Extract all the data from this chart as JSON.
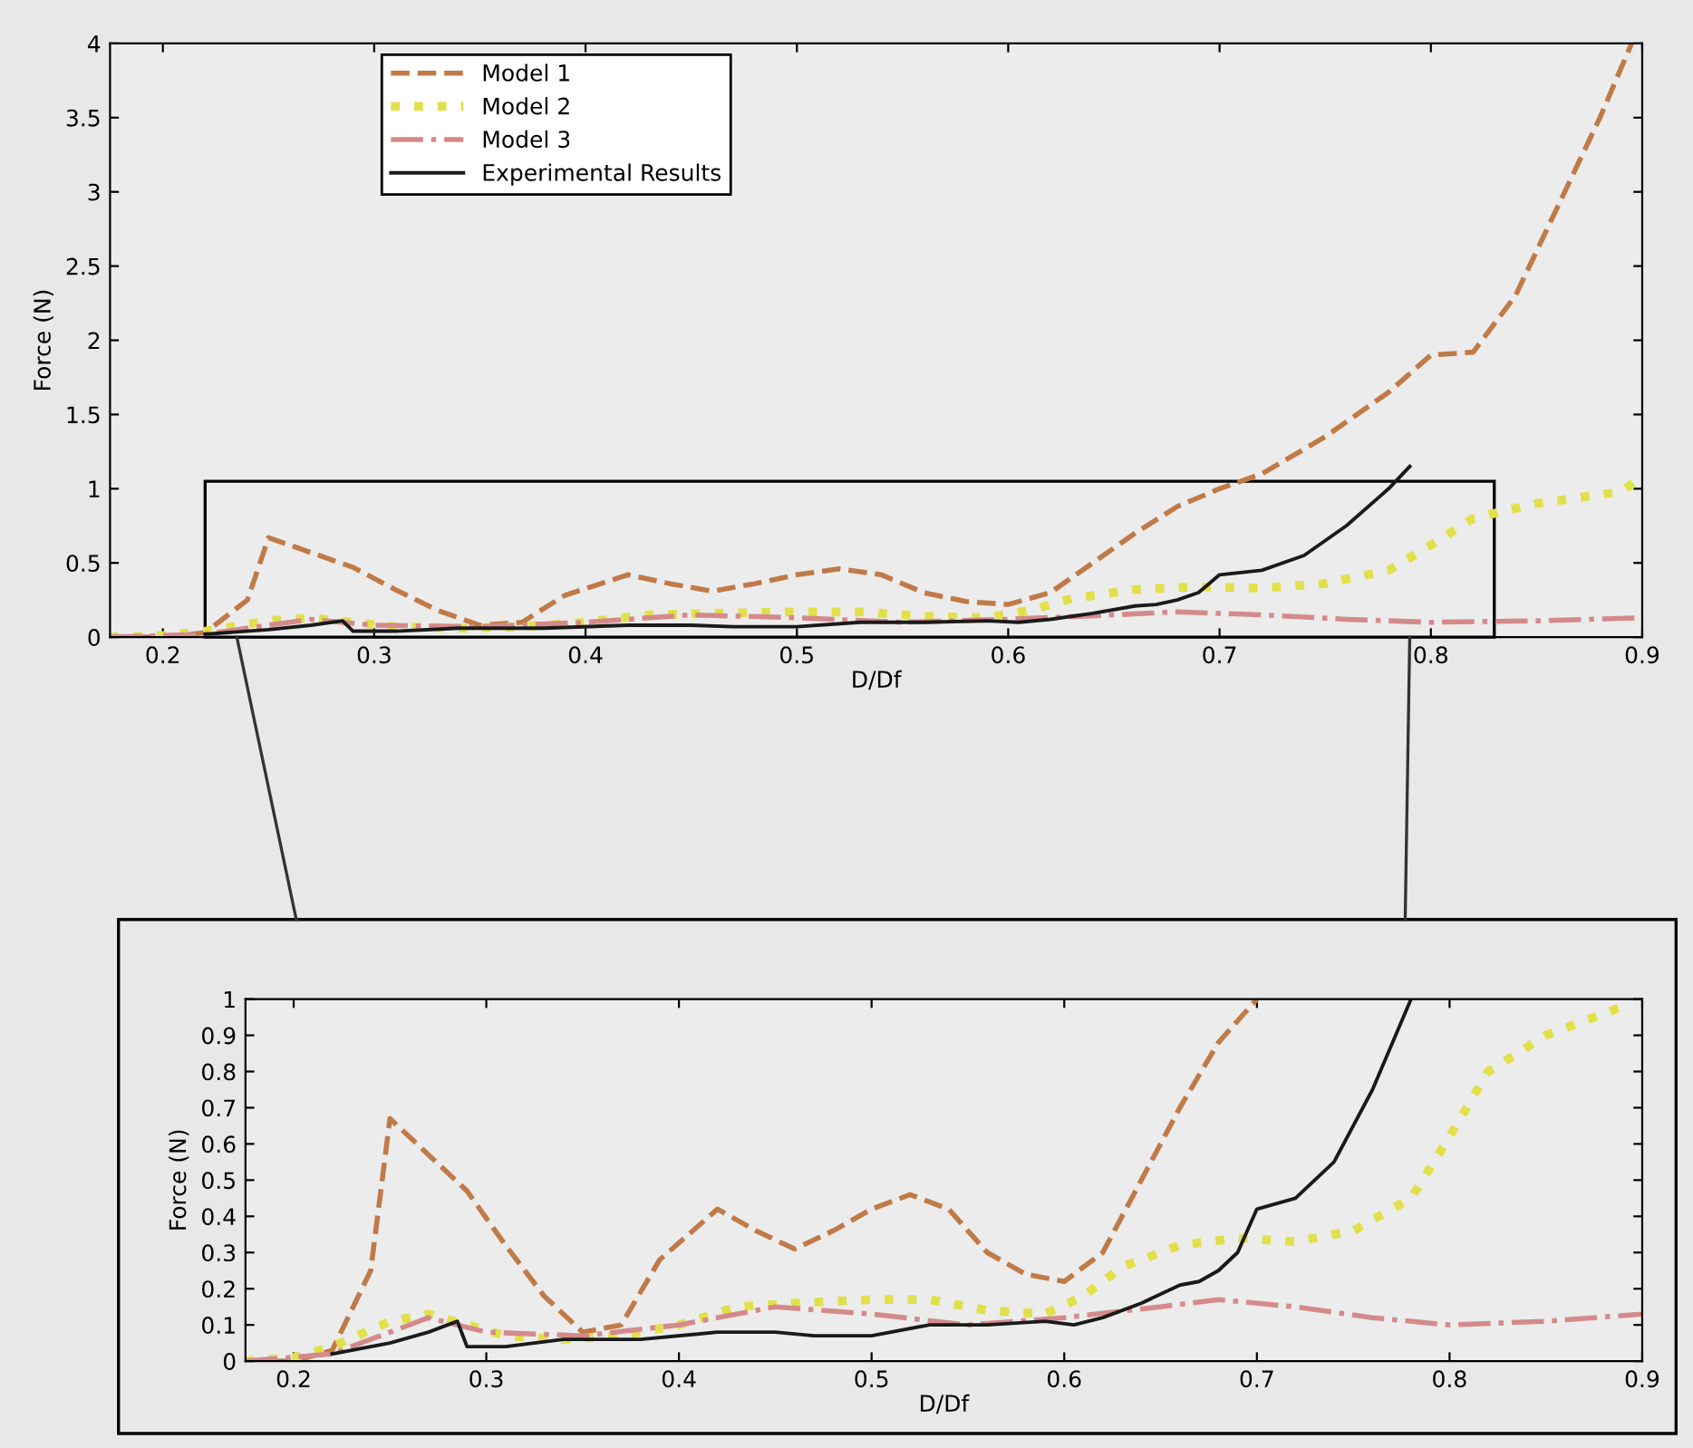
{
  "chart_data": [
    {
      "type": "line",
      "xlabel": "D/Df",
      "ylabel": "Force (N)",
      "xlim": [
        0.175,
        0.9
      ],
      "ylim": [
        0,
        4
      ],
      "xticks": [
        0.2,
        0.3,
        0.4,
        0.5,
        0.6,
        0.7,
        0.8,
        0.9
      ],
      "yticks": [
        0,
        0.5,
        1,
        1.5,
        2,
        2.5,
        3,
        3.5,
        4
      ],
      "legend": "top left",
      "grid": false,
      "series": [
        {
          "name": "Model 1",
          "color": "#c07a48",
          "line_style": "dashed",
          "x": [
            0.175,
            0.2,
            0.22,
            0.24,
            0.25,
            0.27,
            0.29,
            0.31,
            0.33,
            0.35,
            0.37,
            0.39,
            0.42,
            0.44,
            0.46,
            0.48,
            0.5,
            0.52,
            0.54,
            0.56,
            0.58,
            0.6,
            0.62,
            0.64,
            0.66,
            0.68,
            0.7,
            0.72,
            0.75,
            0.78,
            0.8,
            0.82,
            0.84,
            0.86,
            0.88,
            0.895
          ],
          "values": [
            0,
            0,
            0.03,
            0.25,
            0.67,
            0.57,
            0.47,
            0.32,
            0.18,
            0.08,
            0.1,
            0.28,
            0.42,
            0.36,
            0.31,
            0.36,
            0.42,
            0.46,
            0.42,
            0.3,
            0.24,
            0.22,
            0.3,
            0.5,
            0.7,
            0.88,
            1,
            1.1,
            1.35,
            1.65,
            1.9,
            1.92,
            2.3,
            2.9,
            3.5,
            4
          ]
        },
        {
          "name": "Model 2",
          "color": "#e2e04a",
          "line_style": "dotted",
          "x": [
            0.175,
            0.2,
            0.22,
            0.25,
            0.27,
            0.29,
            0.31,
            0.34,
            0.37,
            0.4,
            0.43,
            0.46,
            0.5,
            0.53,
            0.56,
            0.59,
            0.61,
            0.63,
            0.66,
            0.69,
            0.72,
            0.75,
            0.78,
            0.8,
            0.82,
            0.85,
            0.89,
            0.9
          ],
          "values": [
            0,
            0.01,
            0.04,
            0.11,
            0.13,
            0.1,
            0.07,
            0.06,
            0.07,
            0.1,
            0.15,
            0.16,
            0.17,
            0.17,
            0.14,
            0.13,
            0.18,
            0.26,
            0.32,
            0.34,
            0.33,
            0.36,
            0.45,
            0.62,
            0.8,
            0.9,
            0.98,
            1.08
          ]
        },
        {
          "name": "Model 3",
          "color": "#d48a8a",
          "line_style": "dashdot",
          "x": [
            0.175,
            0.22,
            0.25,
            0.27,
            0.3,
            0.35,
            0.4,
            0.45,
            0.5,
            0.55,
            0.6,
            0.65,
            0.68,
            0.72,
            0.76,
            0.8,
            0.85,
            0.9
          ],
          "values": [
            0,
            0.02,
            0.08,
            0.12,
            0.08,
            0.07,
            0.1,
            0.15,
            0.13,
            0.1,
            0.12,
            0.15,
            0.17,
            0.15,
            0.12,
            0.1,
            0.11,
            0.13
          ]
        },
        {
          "name": "Experimental Results",
          "color": "#1a1a1a",
          "line_style": "solid",
          "x": [
            0.22,
            0.25,
            0.27,
            0.285,
            0.29,
            0.31,
            0.34,
            0.38,
            0.42,
            0.45,
            0.47,
            0.5,
            0.53,
            0.56,
            0.59,
            0.605,
            0.62,
            0.64,
            0.66,
            0.67,
            0.68,
            0.69,
            0.695,
            0.7,
            0.72,
            0.74,
            0.76,
            0.78,
            0.79
          ],
          "values": [
            0.02,
            0.05,
            0.08,
            0.11,
            0.04,
            0.04,
            0.06,
            0.06,
            0.08,
            0.08,
            0.07,
            0.07,
            0.1,
            0.1,
            0.11,
            0.1,
            0.12,
            0.16,
            0.21,
            0.22,
            0.25,
            0.3,
            0.36,
            0.42,
            0.45,
            0.55,
            0.75,
            1,
            1.15
          ]
        }
      ]
    },
    {
      "type": "line",
      "xlabel": "D/Df",
      "ylabel": "Force (N)",
      "xlim": [
        0.175,
        0.9
      ],
      "ylim": [
        0,
        1
      ],
      "xticks": [
        0.2,
        0.3,
        0.4,
        0.5,
        0.6,
        0.7,
        0.8,
        0.9
      ],
      "yticks": [
        0,
        0.1,
        0.2,
        0.3,
        0.4,
        0.5,
        0.6,
        0.7,
        0.8,
        0.9,
        1
      ],
      "grid": false,
      "series": [
        {
          "color": "#c07a48",
          "line_style": "dashed",
          "x": [
            0.175,
            0.2,
            0.22,
            0.24,
            0.25,
            0.27,
            0.29,
            0.31,
            0.33,
            0.35,
            0.37,
            0.39,
            0.42,
            0.44,
            0.46,
            0.48,
            0.5,
            0.52,
            0.54,
            0.56,
            0.58,
            0.6,
            0.62,
            0.64,
            0.66,
            0.68,
            0.7
          ],
          "values": [
            0,
            0,
            0.03,
            0.25,
            0.67,
            0.57,
            0.47,
            0.32,
            0.18,
            0.08,
            0.1,
            0.28,
            0.42,
            0.36,
            0.31,
            0.36,
            0.42,
            0.46,
            0.42,
            0.3,
            0.24,
            0.22,
            0.3,
            0.5,
            0.7,
            0.88,
            1
          ]
        },
        {
          "color": "#e2e04a",
          "line_style": "dotted",
          "x": [
            0.175,
            0.2,
            0.22,
            0.25,
            0.27,
            0.29,
            0.31,
            0.34,
            0.37,
            0.4,
            0.43,
            0.46,
            0.5,
            0.53,
            0.56,
            0.59,
            0.61,
            0.63,
            0.66,
            0.69,
            0.72,
            0.75,
            0.78,
            0.8,
            0.82,
            0.85,
            0.89
          ],
          "values": [
            0,
            0.01,
            0.04,
            0.11,
            0.13,
            0.1,
            0.07,
            0.06,
            0.07,
            0.1,
            0.15,
            0.16,
            0.17,
            0.17,
            0.14,
            0.13,
            0.18,
            0.26,
            0.32,
            0.34,
            0.33,
            0.36,
            0.45,
            0.62,
            0.8,
            0.9,
            0.98
          ]
        },
        {
          "color": "#d48a8a",
          "line_style": "dashdot",
          "x": [
            0.175,
            0.22,
            0.25,
            0.27,
            0.3,
            0.35,
            0.4,
            0.45,
            0.5,
            0.55,
            0.6,
            0.65,
            0.68,
            0.72,
            0.76,
            0.8,
            0.85,
            0.9
          ],
          "values": [
            0,
            0.02,
            0.08,
            0.12,
            0.08,
            0.07,
            0.1,
            0.15,
            0.13,
            0.1,
            0.12,
            0.15,
            0.17,
            0.15,
            0.12,
            0.1,
            0.11,
            0.13
          ]
        },
        {
          "color": "#1a1a1a",
          "line_style": "solid",
          "x": [
            0.22,
            0.25,
            0.27,
            0.285,
            0.29,
            0.31,
            0.34,
            0.38,
            0.42,
            0.45,
            0.47,
            0.5,
            0.53,
            0.56,
            0.59,
            0.605,
            0.62,
            0.64,
            0.66,
            0.67,
            0.68,
            0.69,
            0.695,
            0.7,
            0.72,
            0.74,
            0.76,
            0.78
          ],
          "values": [
            0.02,
            0.05,
            0.08,
            0.11,
            0.04,
            0.04,
            0.06,
            0.06,
            0.08,
            0.08,
            0.07,
            0.07,
            0.1,
            0.1,
            0.11,
            0.1,
            0.12,
            0.16,
            0.21,
            0.22,
            0.25,
            0.3,
            0.36,
            0.42,
            0.45,
            0.55,
            0.75,
            1
          ]
        }
      ]
    }
  ]
}
